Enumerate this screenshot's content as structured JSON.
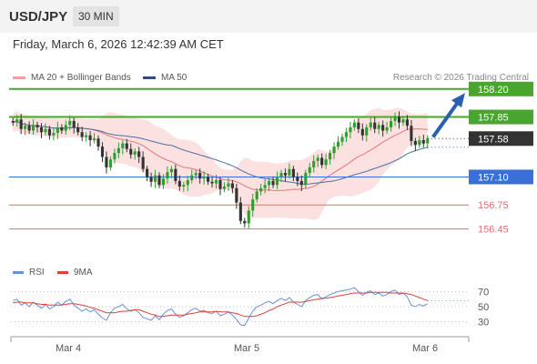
{
  "header": {
    "symbol": "USD/JPY",
    "timeframe": "30 MIN"
  },
  "datetime": "Friday, March 6, 2026 12:42:39 AM CET",
  "credit": "Research © 2026 Trading Central",
  "legend": {
    "ma_bb": "MA 20 + Bollinger Bands",
    "ma50": "MA 50",
    "rsi": "RSI",
    "ma9": "9MA"
  },
  "colors": {
    "ma20": "#e55b5b",
    "bands": "#fbdcdc",
    "ma50": "#4a6fa5",
    "up": "#2f9e2f",
    "down": "#333333",
    "level_green": "#4aa52e",
    "level_blue": "#3a6fd8",
    "level_red": "#e07070",
    "current": "#333333",
    "rsi": "#6b8fd8",
    "ma9": "#d9423a"
  },
  "chart_data": [
    {
      "type": "candlestick",
      "ylim": [
        156.4,
        158.3
      ],
      "x_labels": [
        "Mar 4",
        "Mar 5",
        "Mar 6"
      ],
      "current_price": "157.58",
      "levels": [
        {
          "value": 158.2,
          "label": "158.20",
          "kind": "green"
        },
        {
          "value": 157.85,
          "label": "157.85",
          "kind": "green"
        },
        {
          "value": 157.1,
          "label": "157.10",
          "kind": "blue"
        },
        {
          "value": 156.75,
          "label": "156.75",
          "kind": "red"
        },
        {
          "value": 156.45,
          "label": "156.45",
          "kind": "red"
        }
      ],
      "target_arrow": {
        "from": 157.6,
        "to": 158.15
      },
      "close": [
        157.78,
        157.82,
        157.7,
        157.74,
        157.68,
        157.75,
        157.72,
        157.66,
        157.7,
        157.62,
        157.65,
        157.72,
        157.68,
        157.75,
        157.8,
        157.72,
        157.66,
        157.6,
        157.62,
        157.56,
        157.58,
        157.48,
        157.35,
        157.22,
        157.32,
        157.4,
        157.46,
        157.52,
        157.45,
        157.38,
        157.42,
        157.35,
        157.2,
        157.1,
        157.04,
        157.12,
        157.0,
        157.08,
        157.16,
        157.2,
        157.05,
        156.98,
        157.0,
        157.06,
        157.12,
        157.15,
        157.08,
        157.1,
        157.04,
        157.02,
        157.06,
        156.95,
        156.98,
        157.02,
        156.96,
        156.78,
        156.55,
        156.52,
        156.68,
        156.82,
        156.92,
        156.96,
        157.0,
        157.05,
        157.0,
        157.1,
        157.15,
        157.12,
        157.2,
        157.1,
        157.05,
        157.0,
        157.15,
        157.22,
        157.3,
        157.34,
        157.25,
        157.32,
        157.4,
        157.48,
        157.54,
        157.6,
        157.66,
        157.72,
        157.78,
        157.7,
        157.62,
        157.72,
        157.78,
        157.7,
        157.75,
        157.68,
        157.72,
        157.8,
        157.85,
        157.78,
        157.82,
        157.74,
        157.55,
        157.5,
        157.56,
        157.52,
        157.58
      ]
    },
    {
      "type": "line",
      "title": "RSI",
      "ylim": [
        20,
        80
      ],
      "y_ticks": [
        30,
        50,
        70
      ],
      "rsi_values": [
        58,
        60,
        52,
        55,
        50,
        56,
        52,
        48,
        53,
        47,
        50,
        56,
        52,
        57,
        60,
        52,
        48,
        44,
        47,
        43,
        46,
        40,
        35,
        32,
        42,
        48,
        50,
        53,
        47,
        44,
        46,
        42,
        36,
        34,
        32,
        38,
        33,
        40,
        45,
        47,
        40,
        36,
        38,
        42,
        46,
        48,
        44,
        45,
        42,
        41,
        44,
        38,
        40,
        43,
        39,
        33,
        26,
        25,
        35,
        44,
        50,
        52,
        55,
        57,
        54,
        58,
        61,
        58,
        62,
        56,
        53,
        50,
        58,
        62,
        65,
        66,
        60,
        63,
        66,
        68,
        70,
        71,
        72,
        73,
        75,
        70,
        65,
        69,
        71,
        66,
        68,
        64,
        66,
        70,
        72,
        66,
        68,
        63,
        52,
        50,
        53,
        51,
        54
      ],
      "ma9_values": [
        55,
        56,
        56,
        55,
        55,
        55,
        54,
        53,
        53,
        52,
        52,
        52,
        52,
        53,
        54,
        54,
        53,
        52,
        51,
        49,
        48,
        46,
        44,
        42,
        42,
        42,
        43,
        44,
        44,
        45,
        46,
        46,
        44,
        42,
        40,
        39,
        37,
        37,
        38,
        39,
        39,
        39,
        39,
        40,
        41,
        42,
        43,
        43,
        43,
        43,
        44,
        43,
        43,
        43,
        42,
        41,
        39,
        37,
        37,
        37,
        38,
        40,
        42,
        45,
        47,
        50,
        52,
        54,
        56,
        56,
        56,
        56,
        57,
        58,
        59,
        60,
        61,
        61,
        62,
        63,
        64,
        65,
        66,
        67,
        68,
        68,
        68,
        68,
        69,
        69,
        69,
        69,
        69,
        68,
        68,
        68,
        68,
        67,
        66,
        64,
        62,
        60,
        58
      ]
    }
  ]
}
